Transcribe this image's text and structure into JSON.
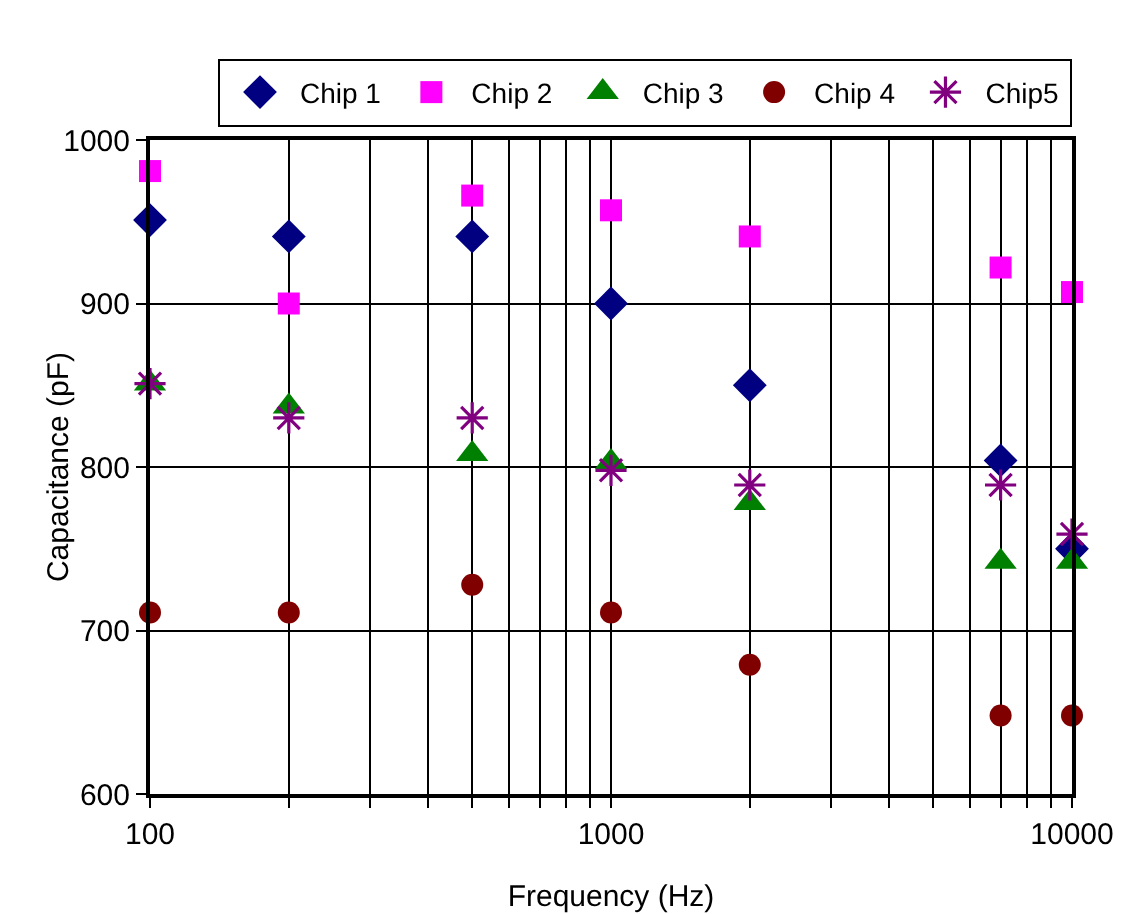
{
  "chart_data": {
    "type": "scatter",
    "xlabel": "Frequency (Hz)",
    "ylabel": "Capacitance (pF)",
    "log": "x",
    "x": [
      100,
      200,
      500,
      1000,
      2000,
      7000,
      10000
    ],
    "series": [
      {
        "name": "Chip 1",
        "color": "#000080",
        "marker": "diamond",
        "values": [
          951,
          941,
          941,
          900,
          850,
          804,
          750
        ]
      },
      {
        "name": "Chip 2",
        "color": "#ff00ff",
        "marker": "square",
        "values": [
          981,
          900,
          966,
          957,
          941,
          922,
          907
        ]
      },
      {
        "name": "Chip 3",
        "color": "#008000",
        "marker": "triangle",
        "values": [
          851,
          837,
          808,
          803,
          778,
          742,
          742
        ]
      },
      {
        "name": "Chip 4",
        "color": "#800000",
        "marker": "circle",
        "values": [
          711,
          711,
          728,
          711,
          679,
          648,
          648
        ]
      },
      {
        "name": "Chip5",
        "color": "#800080",
        "marker": "cross",
        "values": [
          851,
          830,
          830,
          798,
          789,
          789,
          759
        ]
      }
    ],
    "xlim": [
      100,
      10000
    ],
    "xticks": [
      100,
      {
        "value": 200,
        "label": null
      },
      {
        "value": 300,
        "label": null
      },
      {
        "value": 400,
        "label": null
      },
      {
        "value": 500,
        "label": null
      },
      {
        "value": 600,
        "label": null
      },
      {
        "value": 700,
        "label": null
      },
      {
        "value": 800,
        "label": null
      },
      {
        "value": 900,
        "label": null
      },
      1000,
      {
        "value": 2000,
        "label": null
      },
      {
        "value": 3000,
        "label": null
      },
      {
        "value": 4000,
        "label": null
      },
      {
        "value": 5000,
        "label": null
      },
      {
        "value": 6000,
        "label": null
      },
      {
        "value": 7000,
        "label": null
      },
      {
        "value": 8000,
        "label": null
      },
      {
        "value": 9000,
        "label": null
      },
      10000
    ],
    "ylim": [
      600,
      1000
    ],
    "yticks": [
      600,
      700,
      800,
      900,
      1000
    ],
    "grid": true,
    "legend": "top right"
  }
}
